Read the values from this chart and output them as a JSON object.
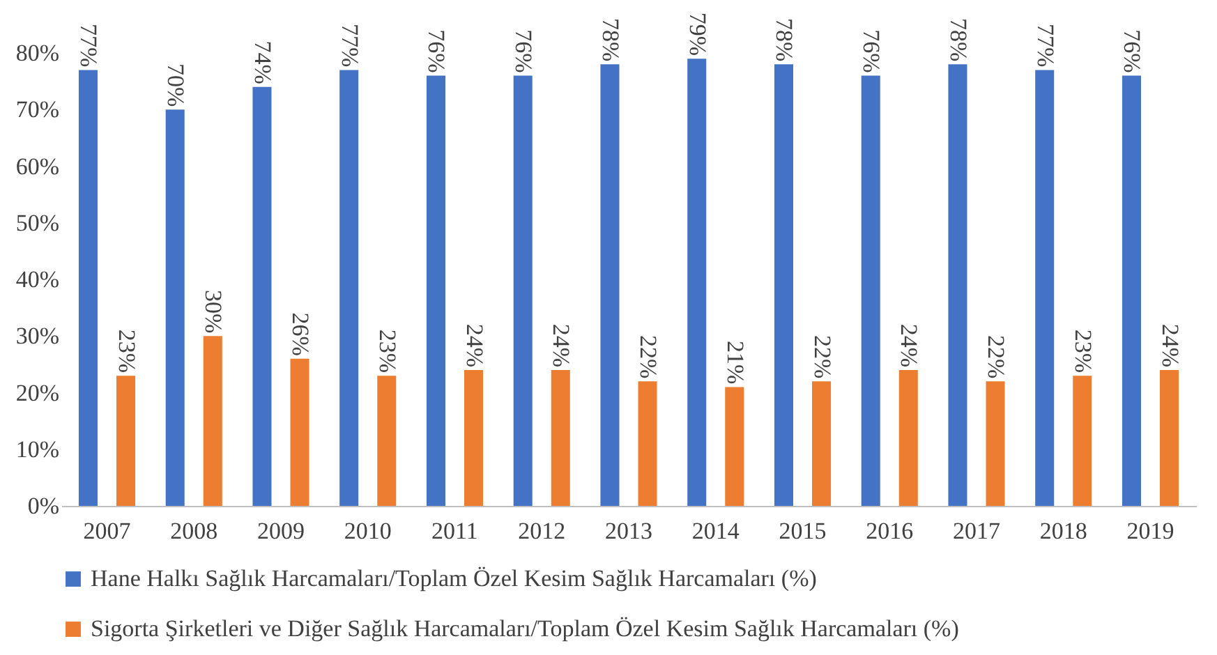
{
  "chart_data": {
    "type": "bar",
    "categories": [
      "2007",
      "2008",
      "2009",
      "2010",
      "2011",
      "2012",
      "2013",
      "2014",
      "2015",
      "2016",
      "2017",
      "2018",
      "2019"
    ],
    "series": [
      {
        "name": "Hane Halkı Sağlık Harcamaları/Toplam Özel Kesim Sağlık Harcamaları (%)",
        "color": "#4472c4",
        "values": [
          77,
          70,
          74,
          77,
          76,
          76,
          78,
          79,
          78,
          76,
          78,
          77,
          76
        ],
        "value_labels": [
          "77%",
          "70%",
          "74%",
          "77%",
          "76%",
          "76%",
          "78%",
          "79%",
          "78%",
          "76%",
          "78%",
          "77%",
          "76%"
        ]
      },
      {
        "name": "Sigorta Şirketleri ve Diğer Sağlık Harcamaları/Toplam Özel Kesim Sağlık Harcamaları (%)",
        "color": "#ed7d31",
        "values": [
          23,
          30,
          26,
          23,
          24,
          24,
          22,
          21,
          22,
          24,
          22,
          23,
          24
        ],
        "value_labels": [
          "23%",
          "30%",
          "26%",
          "23%",
          "24%",
          "24%",
          "22%",
          "21%",
          "22%",
          "24%",
          "22%",
          "23%",
          "24%"
        ]
      }
    ],
    "ylim": [
      0,
      80
    ],
    "yticks": [
      {
        "value": 0,
        "label": "0%"
      },
      {
        "value": 10,
        "label": "10%"
      },
      {
        "value": 20,
        "label": "20%"
      },
      {
        "value": 30,
        "label": "30%"
      },
      {
        "value": 40,
        "label": "40%"
      },
      {
        "value": 50,
        "label": "50%"
      },
      {
        "value": 60,
        "label": "60%"
      },
      {
        "value": 70,
        "label": "70%"
      },
      {
        "value": 80,
        "label": "80%"
      }
    ],
    "grid": false,
    "legend": "bottom"
  }
}
